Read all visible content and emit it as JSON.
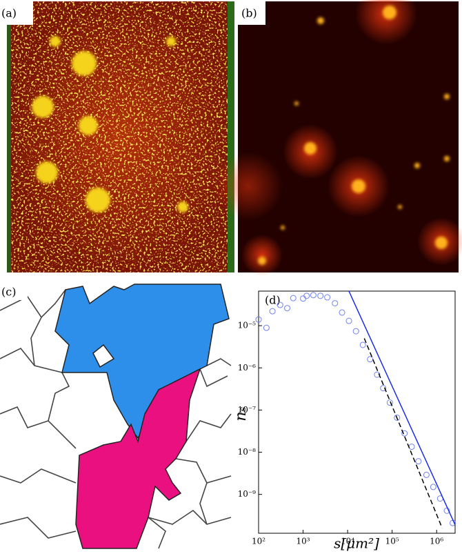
{
  "panel_labels": [
    "(a)",
    "(b)",
    "(c)",
    "(d)"
  ],
  "chart_data": {
    "type": "scatter",
    "xlabel": "s[μm²]",
    "ylabel": "nₛ",
    "xscale": "log",
    "yscale": "log",
    "xlim": [
      100,
      2600000
    ],
    "ylim": [
      1.2e-10,
      6.6e-05
    ],
    "xticks": [
      {
        "value": 100,
        "label": "10²"
      },
      {
        "value": 1000,
        "label": "10³"
      },
      {
        "value": 10000,
        "label": "10⁴"
      },
      {
        "value": 100000,
        "label": "10⁵"
      },
      {
        "value": 1000000,
        "label": "10⁶"
      }
    ],
    "yticks": [
      {
        "value": 1e-09,
        "label": "10⁻⁹"
      },
      {
        "value": 1e-08,
        "label": "10⁻⁸"
      },
      {
        "value": 1e-07,
        "label": "10⁻⁷"
      },
      {
        "value": 1e-06,
        "label": "10⁻⁶"
      },
      {
        "value": 1e-05,
        "label": "10⁻⁵"
      }
    ],
    "series": [
      {
        "type": "scatter",
        "color": "#7080ee",
        "x": [
          100,
          150,
          205,
          305,
          440,
          600,
          1000,
          1200,
          1700,
          2450,
          3500,
          5200,
          7500,
          10700,
          15400,
          22000,
          32000,
          46000,
          63000,
          89000,
          129000,
          190000,
          275000,
          390000,
          590000,
          840000,
          1200000,
          1700000,
          2300000
        ],
        "values": [
          1.4e-05,
          8.9e-06,
          2.2e-05,
          3.1e-05,
          2.6e-05,
          4.5e-05,
          4.4e-05,
          5.1e-05,
          5.3e-05,
          5.1e-05,
          4.7e-05,
          3.4e-05,
          2.05e-05,
          1.3e-05,
          7.4e-06,
          3.5e-06,
          1.6e-06,
          6.9e-07,
          3.3e-07,
          1.5e-07,
          6.6e-08,
          2.8e-08,
          1.35e-08,
          6.1e-09,
          2.9e-09,
          1.5e-09,
          8e-10,
          4.1e-10,
          2.1e-10
        ]
      },
      {
        "type": "line",
        "color": "#1a2ee8",
        "x": [
          10700,
          2600000
        ],
        "values": [
          6.6e-05,
          1.9e-10
        ]
      },
      {
        "type": "line",
        "color": "#000000",
        "dash": true,
        "x": [
          23700,
          1330000
        ],
        "values": [
          5e-06,
          1.6e-10
        ]
      }
    ]
  }
}
